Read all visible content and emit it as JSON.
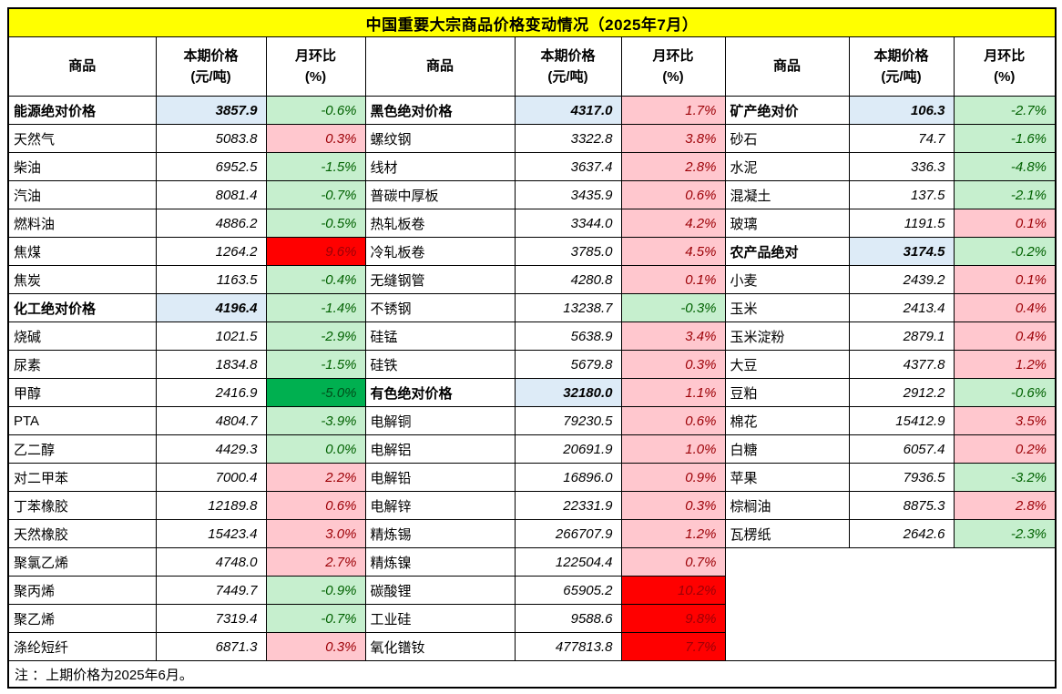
{
  "title": "中国重要大宗商品价格变动情况（2025年7月）",
  "note": "注 ：上期价格为2025年6月。",
  "header": {
    "commodity": "商品",
    "price_l1": "本期价格",
    "price_l2": "(元/吨)",
    "mom_l1": "月环比",
    "mom_l2": "(%)"
  },
  "colors": {
    "title_bg": "#FFFF00",
    "up_bg": "#FFC7CE",
    "up_text": "#9C0006",
    "down_bg": "#C6EFCE",
    "down_text": "#006100",
    "surge_bg": "#FF0000",
    "surge_text": "#9C0006",
    "plunge_bg": "#00B050",
    "plunge_text": "#004E1A",
    "cat_price_bg": "#DDEBF7"
  },
  "chart_data": {
    "type": "table",
    "title": "中国重要大宗商品价格变动情况（2025年7月）",
    "columns": [
      "商品",
      "本期价格(元/吨)",
      "月环比(%)"
    ],
    "groups": [
      {
        "rows": [
          {
            "name": "能源绝对价格",
            "price": "3857.9",
            "mom": "-0.6%",
            "category": true,
            "trend": "down"
          },
          {
            "name": "天然气",
            "price": "5083.8",
            "mom": "0.3%",
            "category": false,
            "trend": "up"
          },
          {
            "name": "柴油",
            "price": "6952.5",
            "mom": "-1.5%",
            "category": false,
            "trend": "down"
          },
          {
            "name": "汽油",
            "price": "8081.4",
            "mom": "-0.7%",
            "category": false,
            "trend": "down"
          },
          {
            "name": "燃料油",
            "price": "4886.2",
            "mom": "-0.5%",
            "category": false,
            "trend": "down"
          },
          {
            "name": "焦煤",
            "price": "1264.2",
            "mom": "9.6%",
            "category": false,
            "trend": "surge"
          },
          {
            "name": "焦炭",
            "price": "1163.5",
            "mom": "-0.4%",
            "category": false,
            "trend": "down"
          },
          {
            "name": "化工绝对价格",
            "price": "4196.4",
            "mom": "-1.4%",
            "category": true,
            "trend": "down"
          },
          {
            "name": "烧碱",
            "price": "1021.5",
            "mom": "-2.9%",
            "category": false,
            "trend": "down"
          },
          {
            "name": "尿素",
            "price": "1834.8",
            "mom": "-1.5%",
            "category": false,
            "trend": "down"
          },
          {
            "name": "甲醇",
            "price": "2416.9",
            "mom": "-5.0%",
            "category": false,
            "trend": "plunge"
          },
          {
            "name": "PTA",
            "price": "4804.7",
            "mom": "-3.9%",
            "category": false,
            "trend": "down"
          },
          {
            "name": "乙二醇",
            "price": "4429.3",
            "mom": "0.0%",
            "category": false,
            "trend": "down"
          },
          {
            "name": "对二甲苯",
            "price": "7000.4",
            "mom": "2.2%",
            "category": false,
            "trend": "up"
          },
          {
            "name": "丁苯橡胶",
            "price": "12189.8",
            "mom": "0.6%",
            "category": false,
            "trend": "up"
          },
          {
            "name": "天然橡胶",
            "price": "15423.4",
            "mom": "3.0%",
            "category": false,
            "trend": "up"
          },
          {
            "name": "聚氯乙烯",
            "price": "4748.0",
            "mom": "2.7%",
            "category": false,
            "trend": "up"
          },
          {
            "name": "聚丙烯",
            "price": "7449.7",
            "mom": "-0.9%",
            "category": false,
            "trend": "down"
          },
          {
            "name": "聚乙烯",
            "price": "7319.4",
            "mom": "-0.7%",
            "category": false,
            "trend": "down"
          },
          {
            "name": "涤纶短纤",
            "price": "6871.3",
            "mom": "0.3%",
            "category": false,
            "trend": "up"
          }
        ]
      },
      {
        "rows": [
          {
            "name": "黑色绝对价格",
            "price": "4317.0",
            "mom": "1.7%",
            "category": true,
            "trend": "up"
          },
          {
            "name": "螺纹钢",
            "price": "3322.8",
            "mom": "3.8%",
            "category": false,
            "trend": "up"
          },
          {
            "name": "线材",
            "price": "3637.4",
            "mom": "2.8%",
            "category": false,
            "trend": "up"
          },
          {
            "name": "普碳中厚板",
            "price": "3435.9",
            "mom": "0.6%",
            "category": false,
            "trend": "up"
          },
          {
            "name": "热轧板卷",
            "price": "3344.0",
            "mom": "4.2%",
            "category": false,
            "trend": "up"
          },
          {
            "name": "冷轧板卷",
            "price": "3785.0",
            "mom": "4.5%",
            "category": false,
            "trend": "up"
          },
          {
            "name": "无缝钢管",
            "price": "4280.8",
            "mom": "0.1%",
            "category": false,
            "trend": "up"
          },
          {
            "name": "不锈钢",
            "price": "13238.7",
            "mom": "-0.3%",
            "category": false,
            "trend": "down"
          },
          {
            "name": "硅锰",
            "price": "5638.9",
            "mom": "3.4%",
            "category": false,
            "trend": "up"
          },
          {
            "name": "硅铁",
            "price": "5679.8",
            "mom": "0.3%",
            "category": false,
            "trend": "up"
          },
          {
            "name": "有色绝对价格",
            "price": "32180.0",
            "mom": "1.1%",
            "category": true,
            "trend": "up"
          },
          {
            "name": "电解铜",
            "price": "79230.5",
            "mom": "0.6%",
            "category": false,
            "trend": "up"
          },
          {
            "name": "电解铝",
            "price": "20691.9",
            "mom": "1.0%",
            "category": false,
            "trend": "up"
          },
          {
            "name": "电解铅",
            "price": "16896.0",
            "mom": "0.9%",
            "category": false,
            "trend": "up"
          },
          {
            "name": "电解锌",
            "price": "22331.9",
            "mom": "0.3%",
            "category": false,
            "trend": "up"
          },
          {
            "name": "精炼锡",
            "price": "266707.9",
            "mom": "1.2%",
            "category": false,
            "trend": "up"
          },
          {
            "name": "精炼镍",
            "price": "122504.4",
            "mom": "0.7%",
            "category": false,
            "trend": "up"
          },
          {
            "name": "碳酸锂",
            "price": "65905.2",
            "mom": "10.2%",
            "category": false,
            "trend": "surge"
          },
          {
            "name": "工业硅",
            "price": "9588.6",
            "mom": "9.8%",
            "category": false,
            "trend": "surge"
          },
          {
            "name": "氧化镨钕",
            "price": "477813.8",
            "mom": "7.7%",
            "category": false,
            "trend": "surge"
          }
        ]
      },
      {
        "rows": [
          {
            "name": "矿产绝对价",
            "price": "106.3",
            "mom": "-2.7%",
            "category": true,
            "trend": "down"
          },
          {
            "name": "砂石",
            "price": "74.7",
            "mom": "-1.6%",
            "category": false,
            "trend": "down"
          },
          {
            "name": "水泥",
            "price": "336.3",
            "mom": "-4.8%",
            "category": false,
            "trend": "down"
          },
          {
            "name": "混凝土",
            "price": "137.5",
            "mom": "-2.1%",
            "category": false,
            "trend": "down"
          },
          {
            "name": "玻璃",
            "price": "1191.5",
            "mom": "0.1%",
            "category": false,
            "trend": "up"
          },
          {
            "name": "农产品绝对",
            "price": "3174.5",
            "mom": "-0.2%",
            "category": true,
            "trend": "down"
          },
          {
            "name": "小麦",
            "price": "2439.2",
            "mom": "0.1%",
            "category": false,
            "trend": "up"
          },
          {
            "name": "玉米",
            "price": "2413.4",
            "mom": "0.4%",
            "category": false,
            "trend": "up"
          },
          {
            "name": "玉米淀粉",
            "price": "2879.1",
            "mom": "0.4%",
            "category": false,
            "trend": "up"
          },
          {
            "name": "大豆",
            "price": "4377.8",
            "mom": "1.2%",
            "category": false,
            "trend": "up"
          },
          {
            "name": "豆粕",
            "price": "2912.2",
            "mom": "-0.6%",
            "category": false,
            "trend": "down"
          },
          {
            "name": "棉花",
            "price": "15412.9",
            "mom": "3.5%",
            "category": false,
            "trend": "up"
          },
          {
            "name": "白糖",
            "price": "6057.4",
            "mom": "0.2%",
            "category": false,
            "trend": "up"
          },
          {
            "name": "苹果",
            "price": "7936.5",
            "mom": "-3.2%",
            "category": false,
            "trend": "down"
          },
          {
            "name": "棕榈油",
            "price": "8875.3",
            "mom": "2.8%",
            "category": false,
            "trend": "up"
          },
          {
            "name": "瓦楞纸",
            "price": "2642.6",
            "mom": "-2.3%",
            "category": false,
            "trend": "down"
          }
        ]
      }
    ]
  }
}
